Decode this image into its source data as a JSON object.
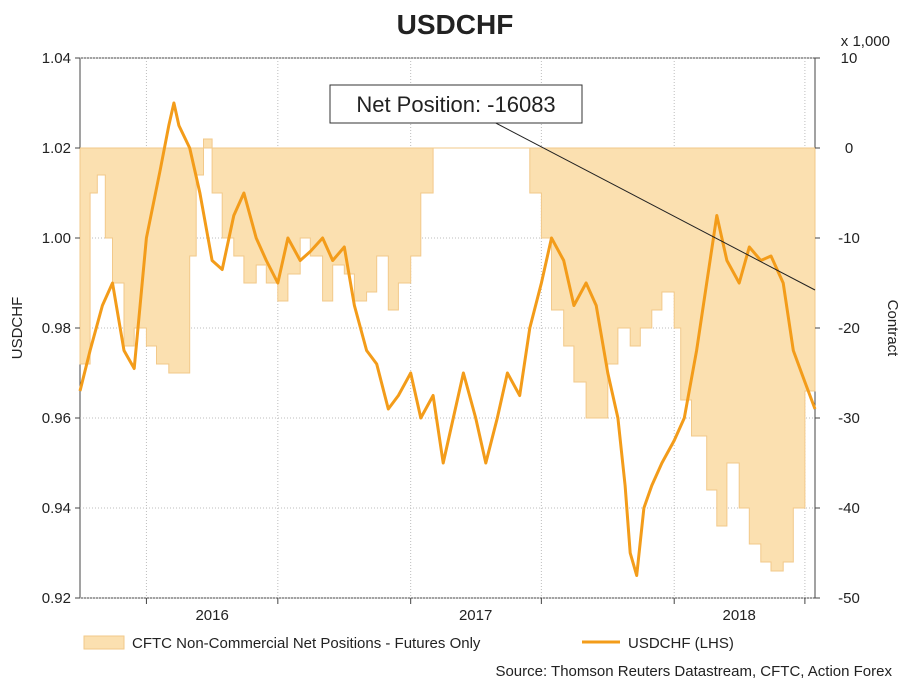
{
  "chart_data": {
    "type": "line",
    "title": "USDCHF",
    "ylabel": "USDCHF",
    "y2label": "Contract",
    "y2_multiplier": "x 1,000",
    "ylim": [
      0.92,
      1.04
    ],
    "y2lim": [
      -50,
      10
    ],
    "xlim": [
      "2015-10-01",
      "2018-07-15"
    ],
    "y_ticks": [
      "0.92",
      "0.94",
      "0.96",
      "0.98",
      "1.00",
      "1.02",
      "1.04"
    ],
    "y2_ticks": [
      "-50",
      "-40",
      "-30",
      "-20",
      "-10",
      "0",
      "10"
    ],
    "x_ticks": [
      {
        "label": "2016",
        "date": "2016-01-01"
      },
      {
        "label": "2017",
        "date": "2017-01-01"
      },
      {
        "label": "2018",
        "date": "2018-01-01"
      }
    ],
    "grid": true,
    "legend_position": "bottom",
    "annotation": "Net Position: -16083",
    "source": "Source: Thomson Reuters Datastream, CFTC, Action Forex",
    "colors": {
      "usdchf_line": "#f39c1a",
      "net_fill": "#fbe0b0",
      "net_stroke": "#f2c98a"
    },
    "series": [
      {
        "name": "CFTC Non-Commercial Net Positions - Futures Only",
        "kind": "area",
        "axis": "right",
        "points": [
          [
            "2015-10-01",
            -24
          ],
          [
            "2015-10-15",
            -5
          ],
          [
            "2015-10-25",
            -3
          ],
          [
            "2015-11-05",
            -10
          ],
          [
            "2015-11-15",
            -15
          ],
          [
            "2015-12-01",
            -22
          ],
          [
            "2015-12-15",
            -20
          ],
          [
            "2016-01-01",
            -22
          ],
          [
            "2016-01-15",
            -24
          ],
          [
            "2016-02-01",
            -25
          ],
          [
            "2016-02-15",
            -25
          ],
          [
            "2016-03-01",
            -12
          ],
          [
            "2016-03-10",
            -3
          ],
          [
            "2016-03-20",
            1
          ],
          [
            "2016-04-01",
            -5
          ],
          [
            "2016-04-15",
            -10
          ],
          [
            "2016-05-01",
            -12
          ],
          [
            "2016-05-15",
            -15
          ],
          [
            "2016-06-01",
            -13
          ],
          [
            "2016-06-15",
            -15
          ],
          [
            "2016-07-01",
            -17
          ],
          [
            "2016-07-15",
            -14
          ],
          [
            "2016-08-01",
            -10
          ],
          [
            "2016-08-15",
            -12
          ],
          [
            "2016-09-01",
            -17
          ],
          [
            "2016-09-15",
            -13
          ],
          [
            "2016-10-01",
            -14
          ],
          [
            "2016-10-15",
            -17
          ],
          [
            "2016-11-01",
            -16
          ],
          [
            "2016-11-15",
            -12
          ],
          [
            "2016-12-01",
            -18
          ],
          [
            "2016-12-15",
            -15
          ],
          [
            "2017-01-01",
            -12
          ],
          [
            "2017-01-15",
            -5
          ],
          [
            "2017-02-01",
            0
          ],
          [
            "2017-02-15",
            0
          ],
          [
            "2017-03-01",
            0
          ],
          [
            "2017-03-15",
            0
          ],
          [
            "2017-04-01",
            0
          ],
          [
            "2017-05-01",
            0
          ],
          [
            "2017-06-01",
            0
          ],
          [
            "2017-06-15",
            -5
          ],
          [
            "2017-07-01",
            -10
          ],
          [
            "2017-07-15",
            -18
          ],
          [
            "2017-08-01",
            -22
          ],
          [
            "2017-08-15",
            -26
          ],
          [
            "2017-09-01",
            -30
          ],
          [
            "2017-09-15",
            -30
          ],
          [
            "2017-10-01",
            -24
          ],
          [
            "2017-10-15",
            -20
          ],
          [
            "2017-11-01",
            -22
          ],
          [
            "2017-11-15",
            -20
          ],
          [
            "2017-12-01",
            -18
          ],
          [
            "2017-12-15",
            -16
          ],
          [
            "2018-01-01",
            -20
          ],
          [
            "2018-01-10",
            -28
          ],
          [
            "2018-01-25",
            -32
          ],
          [
            "2018-02-15",
            -38
          ],
          [
            "2018-03-01",
            -42
          ],
          [
            "2018-03-15",
            -35
          ],
          [
            "2018-04-01",
            -40
          ],
          [
            "2018-04-15",
            -44
          ],
          [
            "2018-05-01",
            -46
          ],
          [
            "2018-05-15",
            -47
          ],
          [
            "2018-06-01",
            -46
          ],
          [
            "2018-06-15",
            -40
          ],
          [
            "2018-07-01",
            -27
          ],
          [
            "2018-07-15",
            -16
          ]
        ]
      },
      {
        "name": "USDCHF (LHS)",
        "kind": "line",
        "axis": "left",
        "points": [
          [
            "2015-10-01",
            0.966
          ],
          [
            "2015-10-15",
            0.975
          ],
          [
            "2015-11-01",
            0.985
          ],
          [
            "2015-11-15",
            0.99
          ],
          [
            "2015-12-01",
            0.975
          ],
          [
            "2015-12-15",
            0.971
          ],
          [
            "2016-01-01",
            1.0
          ],
          [
            "2016-01-20",
            1.015
          ],
          [
            "2016-02-01",
            1.025
          ],
          [
            "2016-02-08",
            1.03
          ],
          [
            "2016-02-15",
            1.025
          ],
          [
            "2016-03-01",
            1.02
          ],
          [
            "2016-03-15",
            1.01
          ],
          [
            "2016-04-01",
            0.995
          ],
          [
            "2016-04-15",
            0.993
          ],
          [
            "2016-05-01",
            1.005
          ],
          [
            "2016-05-15",
            1.01
          ],
          [
            "2016-06-01",
            1.0
          ],
          [
            "2016-06-15",
            0.995
          ],
          [
            "2016-07-01",
            0.99
          ],
          [
            "2016-07-15",
            1.0
          ],
          [
            "2016-08-01",
            0.995
          ],
          [
            "2016-08-15",
            0.997
          ],
          [
            "2016-09-01",
            1.0
          ],
          [
            "2016-09-15",
            0.995
          ],
          [
            "2016-10-01",
            0.998
          ],
          [
            "2016-10-15",
            0.985
          ],
          [
            "2016-11-01",
            0.975
          ],
          [
            "2016-11-15",
            0.972
          ],
          [
            "2016-12-01",
            0.962
          ],
          [
            "2016-12-15",
            0.965
          ],
          [
            "2017-01-01",
            0.97
          ],
          [
            "2017-01-15",
            0.96
          ],
          [
            "2017-02-01",
            0.965
          ],
          [
            "2017-02-15",
            0.95
          ],
          [
            "2017-03-01",
            0.96
          ],
          [
            "2017-03-15",
            0.97
          ],
          [
            "2017-04-01",
            0.96
          ],
          [
            "2017-04-15",
            0.95
          ],
          [
            "2017-05-01",
            0.96
          ],
          [
            "2017-05-15",
            0.97
          ],
          [
            "2017-06-01",
            0.965
          ],
          [
            "2017-06-15",
            0.98
          ],
          [
            "2017-07-01",
            0.99
          ],
          [
            "2017-07-15",
            1.0
          ],
          [
            "2017-08-01",
            0.995
          ],
          [
            "2017-08-15",
            0.985
          ],
          [
            "2017-09-01",
            0.99
          ],
          [
            "2017-09-15",
            0.985
          ],
          [
            "2017-10-01",
            0.97
          ],
          [
            "2017-10-15",
            0.96
          ],
          [
            "2017-10-25",
            0.945
          ],
          [
            "2017-11-01",
            0.93
          ],
          [
            "2017-11-10",
            0.925
          ],
          [
            "2017-11-20",
            0.94
          ],
          [
            "2017-12-01",
            0.945
          ],
          [
            "2017-12-15",
            0.95
          ],
          [
            "2018-01-01",
            0.955
          ],
          [
            "2018-01-15",
            0.96
          ],
          [
            "2018-02-01",
            0.975
          ],
          [
            "2018-02-15",
            0.99
          ],
          [
            "2018-03-01",
            1.005
          ],
          [
            "2018-03-15",
            0.995
          ],
          [
            "2018-04-01",
            0.99
          ],
          [
            "2018-04-15",
            0.998
          ],
          [
            "2018-05-01",
            0.995
          ],
          [
            "2018-05-15",
            0.996
          ],
          [
            "2018-06-01",
            0.99
          ],
          [
            "2018-06-15",
            0.975
          ],
          [
            "2018-07-01",
            0.968
          ],
          [
            "2018-07-15",
            0.962
          ]
        ]
      }
    ]
  }
}
